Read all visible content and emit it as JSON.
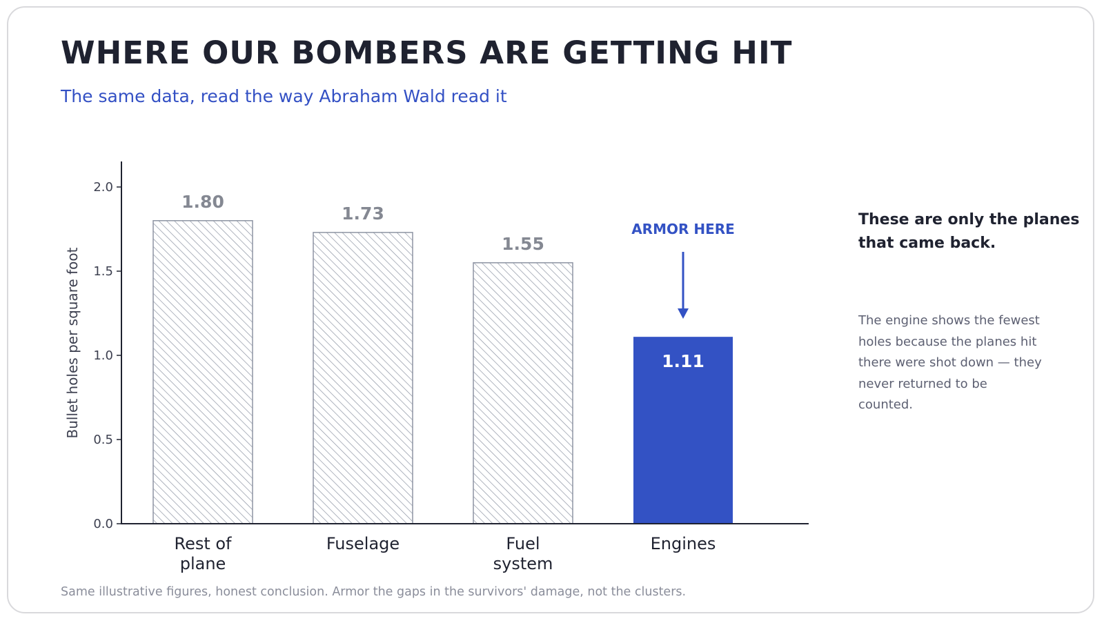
{
  "header": {
    "title": "WHERE OUR BOMBERS ARE GETTING HIT",
    "subtitle": "The same data, read the way Abraham Wald read it"
  },
  "side_note": {
    "heading": "These are only the planes that came back.",
    "body": "The engine shows the fewest holes because the planes hit there were shot down — they never returned to be counted."
  },
  "footnote": "Same illustrative figures, honest conclusion. Armor the gaps in the survivors' damage, not the clusters.",
  "colors": {
    "accent": "#3352c4",
    "hatched_bar_outline": "#8d94a3",
    "value_label": "#848892",
    "axis": "#1f2230",
    "title": "#1f2230"
  },
  "chart_data": {
    "type": "bar",
    "categories": [
      "Rest of plane",
      "Fuselage",
      "Fuel system",
      "Engines"
    ],
    "category_label_lines": [
      [
        "Rest of",
        "plane"
      ],
      [
        "Fuselage"
      ],
      [
        "Fuel",
        "system"
      ],
      [
        "Engines"
      ]
    ],
    "values": [
      1.8,
      1.73,
      1.55,
      1.11
    ],
    "value_labels": [
      "1.80",
      "1.73",
      "1.55",
      "1.11"
    ],
    "highlight_index": 3,
    "bar_styles": [
      "hatched",
      "hatched",
      "hatched",
      "solid-accent"
    ],
    "ylabel": "Bullet holes per square foot",
    "xlabel": "",
    "ylim": [
      0,
      2.15
    ],
    "yticks": [
      0.0,
      0.5,
      1.0,
      1.5,
      2.0
    ],
    "ytick_labels": [
      "0.0",
      "0.5",
      "1.0",
      "1.5",
      "2.0"
    ],
    "grid": false,
    "annotation": {
      "text": "ARMOR HERE",
      "target_category": "Engines",
      "arrow": "down"
    }
  }
}
